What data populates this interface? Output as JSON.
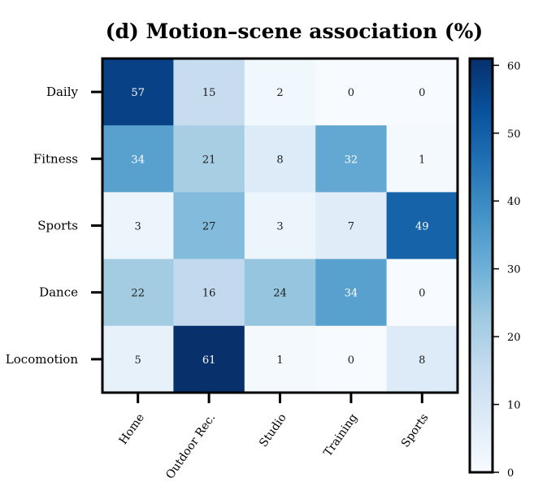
{
  "chart_data": {
    "type": "heatmap",
    "title": "(d) Motion–scene association (%)",
    "rows": [
      "Daily",
      "Fitness",
      "Sports",
      "Dance",
      "Locomotion"
    ],
    "columns": [
      "Home",
      "Outdoor Rec.",
      "Studio",
      "Training",
      "Sports"
    ],
    "values": [
      [
        57,
        15,
        2,
        0,
        0
      ],
      [
        34,
        21,
        8,
        32,
        1
      ],
      [
        3,
        27,
        3,
        7,
        49
      ],
      [
        22,
        16,
        24,
        34,
        0
      ],
      [
        5,
        61,
        1,
        0,
        8
      ]
    ],
    "colorbar": {
      "range": [
        0,
        61
      ],
      "ticks": [
        0,
        10,
        20,
        30,
        40,
        50,
        60
      ]
    },
    "colormap": "Blues"
  }
}
